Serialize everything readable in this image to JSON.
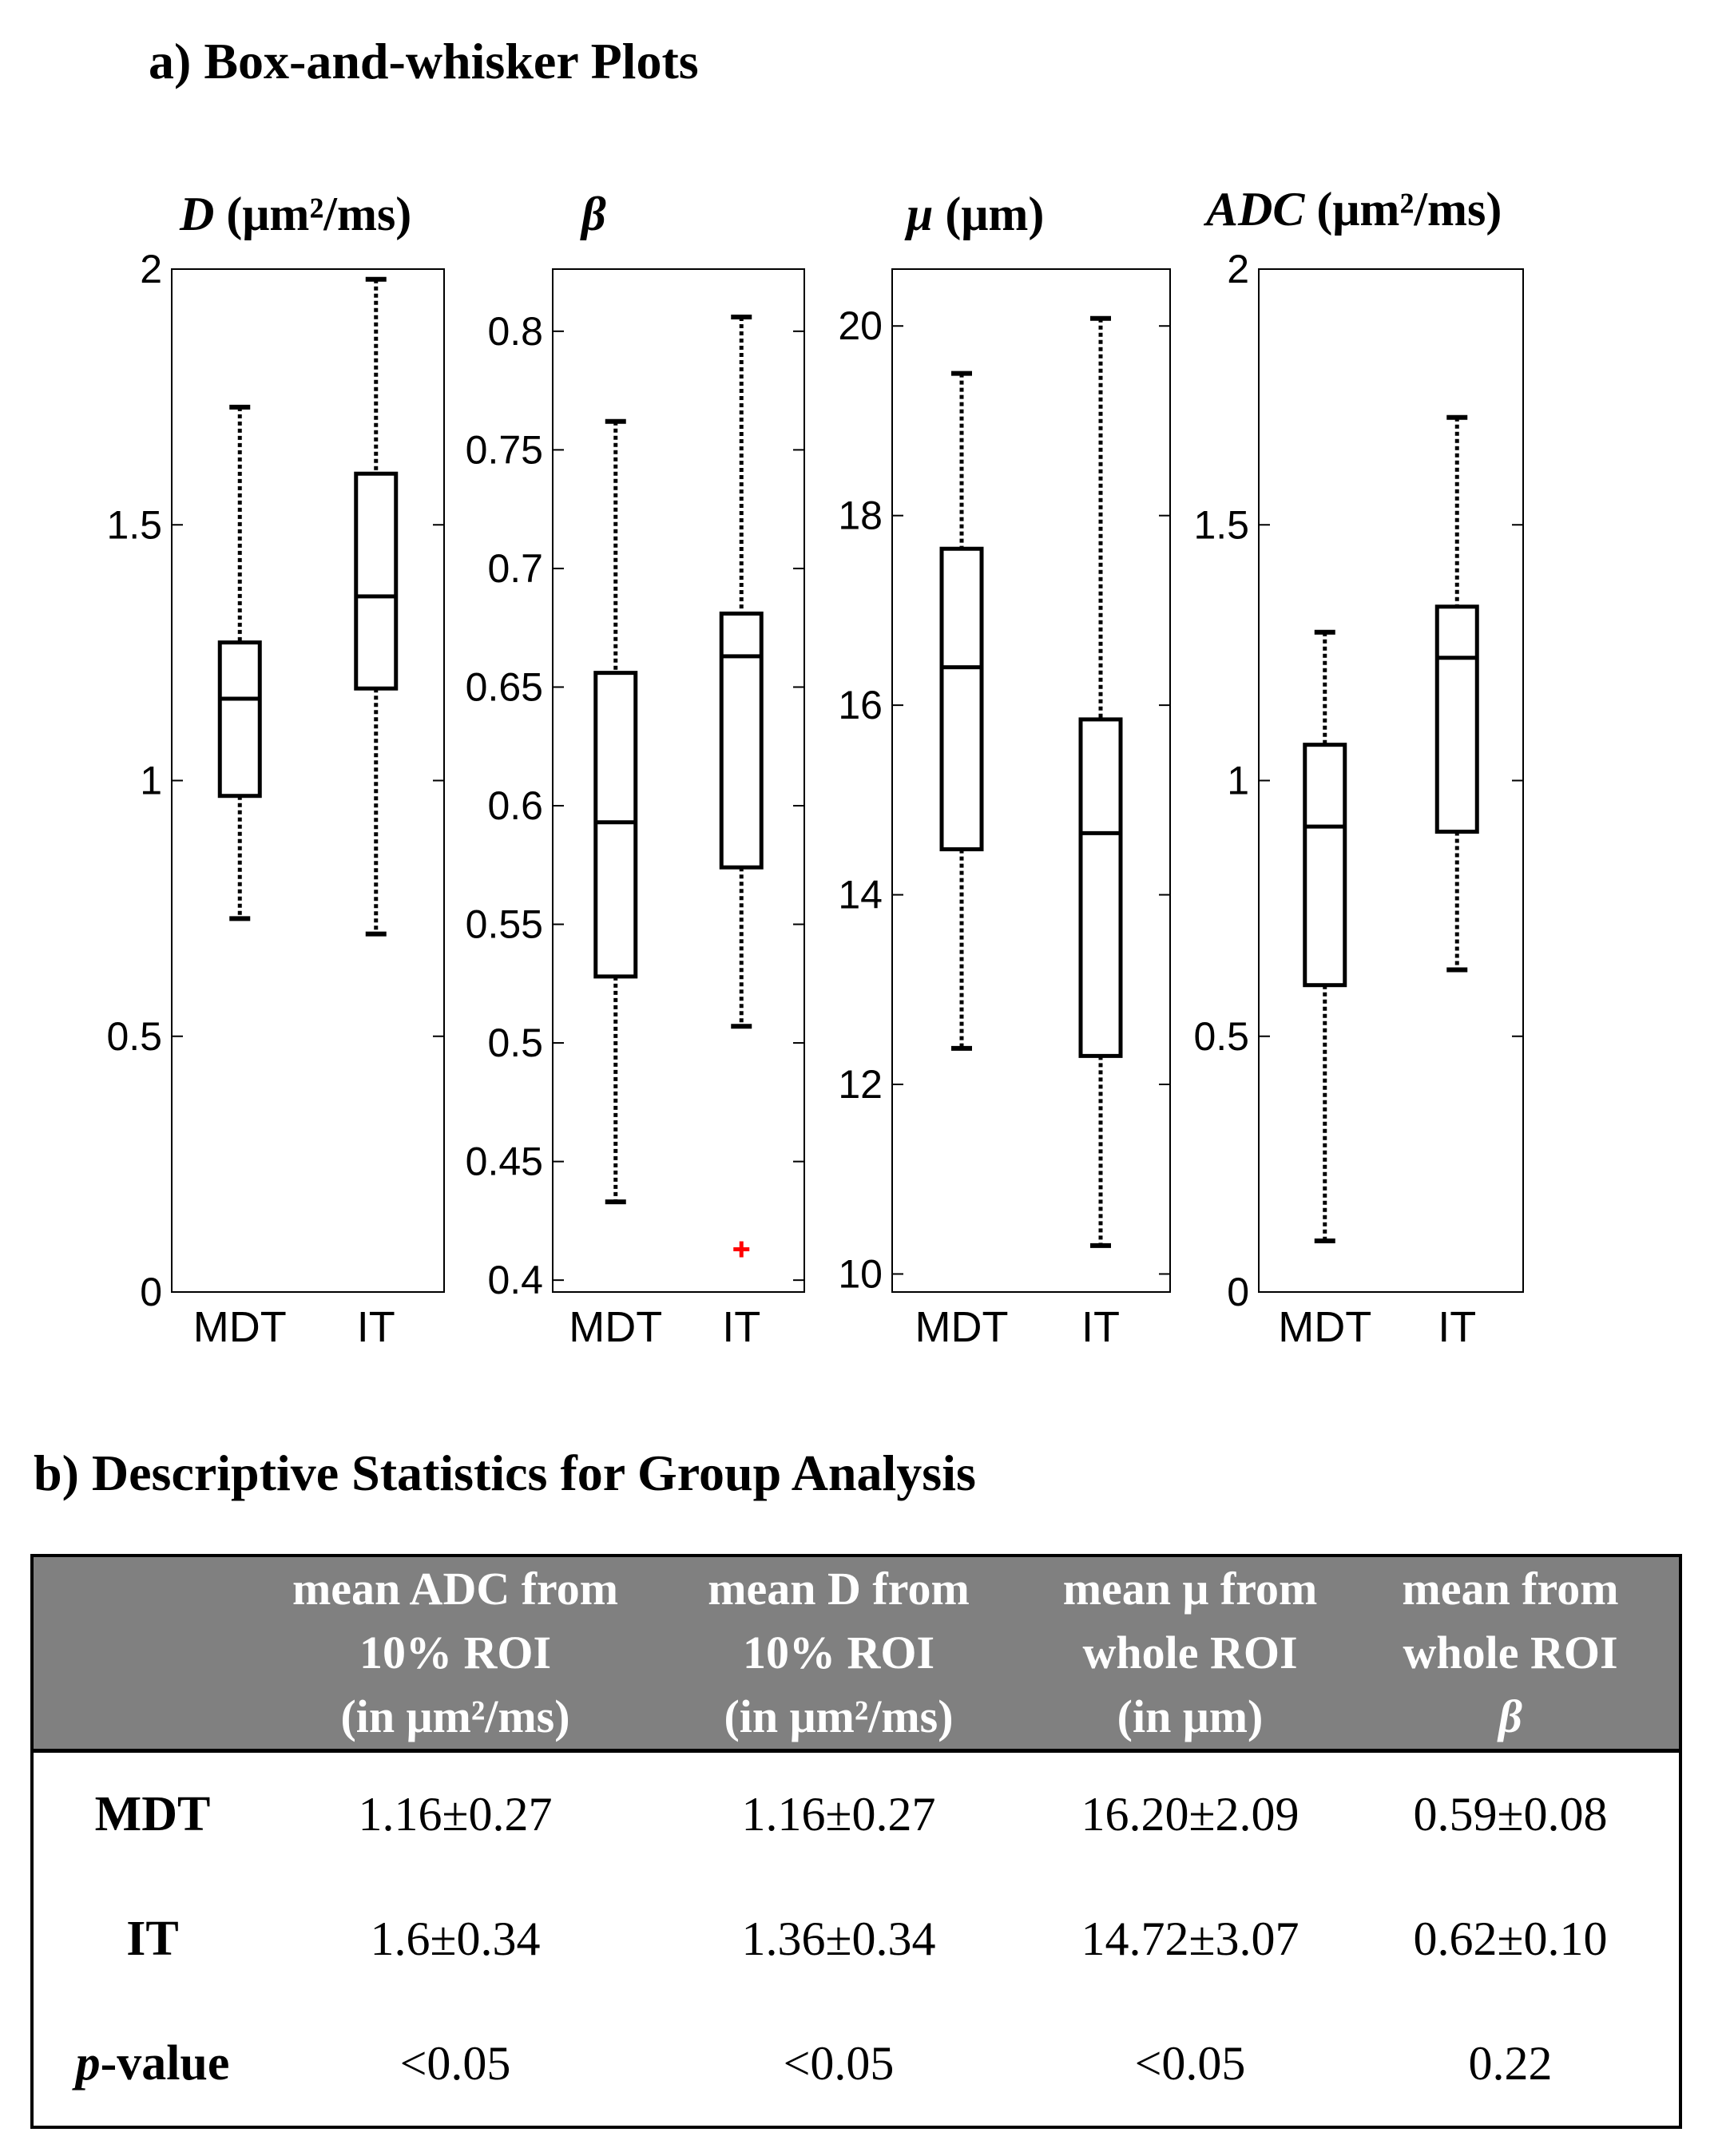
{
  "section_a_title": "a) Box-and-whisker Plots",
  "section_b_title": "b) Descriptive Statistics for Group Analysis",
  "colors": {
    "outlier": "#ff0000",
    "table_header_bg": "#808080",
    "table_header_text": "#ffffff"
  },
  "chart_data": [
    {
      "type": "box",
      "title": {
        "symbol": "D",
        "unit": " (μm²/ms)"
      },
      "ylim": [
        0,
        2
      ],
      "yticks": [
        "0",
        "0.5",
        "1",
        "1.5",
        "2"
      ],
      "categories": [
        "MDT",
        "IT"
      ],
      "boxes": [
        {
          "group": "MDT",
          "whisker_low": 0.73,
          "q1": 0.97,
          "median": 1.16,
          "q3": 1.27,
          "whisker_high": 1.73,
          "outliers": []
        },
        {
          "group": "IT",
          "whisker_low": 0.7,
          "q1": 1.18,
          "median": 1.36,
          "q3": 1.6,
          "whisker_high": 1.98,
          "outliers": []
        }
      ]
    },
    {
      "type": "box",
      "title": {
        "symbol": "β",
        "unit": ""
      },
      "ylim": [
        0.4,
        0.825
      ],
      "yticks": [
        "0.4",
        "0.45",
        "0.5",
        "0.55",
        "0.6",
        "0.65",
        "0.7",
        "0.75",
        "0.8"
      ],
      "categories": [
        "MDT",
        "IT"
      ],
      "boxes": [
        {
          "group": "MDT",
          "whisker_low": 0.433,
          "q1": 0.528,
          "median": 0.593,
          "q3": 0.656,
          "whisker_high": 0.762,
          "outliers": []
        },
        {
          "group": "IT",
          "whisker_low": 0.507,
          "q1": 0.574,
          "median": 0.663,
          "q3": 0.681,
          "whisker_high": 0.806,
          "outliers": [
            0.413
          ]
        }
      ]
    },
    {
      "type": "box",
      "title": {
        "symbol": "μ",
        "unit": " (μm)"
      },
      "ylim": [
        9.8,
        20.6
      ],
      "yticks": [
        "10",
        "12",
        "14",
        "16",
        "18",
        "20"
      ],
      "categories": [
        "MDT",
        "IT"
      ],
      "boxes": [
        {
          "group": "MDT",
          "whisker_low": 12.38,
          "q1": 14.48,
          "median": 16.4,
          "q3": 17.65,
          "whisker_high": 19.5,
          "outliers": []
        },
        {
          "group": "IT",
          "whisker_low": 10.3,
          "q1": 12.3,
          "median": 14.65,
          "q3": 15.85,
          "whisker_high": 20.08,
          "outliers": []
        }
      ]
    },
    {
      "type": "box",
      "title": {
        "symbol": "ADC",
        "unit": " (μm²/ms)"
      },
      "ylim": [
        0,
        2
      ],
      "yticks": [
        "0",
        "0.5",
        "1",
        "1.5",
        "2"
      ],
      "categories": [
        "MDT",
        "IT"
      ],
      "boxes": [
        {
          "group": "MDT",
          "whisker_low": 0.1,
          "q1": 0.6,
          "median": 0.91,
          "q3": 1.07,
          "whisker_high": 1.29,
          "outliers": []
        },
        {
          "group": "IT",
          "whisker_low": 0.63,
          "q1": 0.9,
          "median": 1.24,
          "q3": 1.34,
          "whisker_high": 1.71,
          "outliers": []
        }
      ]
    }
  ],
  "table": {
    "headers": [
      {
        "l1": "",
        "l2": "",
        "l3": ""
      },
      {
        "l1": "mean ADC from",
        "l2": "10% ROI",
        "l3": "(in μm²/ms)"
      },
      {
        "l1": "mean D from",
        "l2": "10% ROI",
        "l3": "(in μm²/ms)"
      },
      {
        "l1": "mean μ from",
        "l2": "whole ROI",
        "l3": "(in μm)"
      },
      {
        "l1": "mean  from",
        "l2": "whole ROI",
        "l3": "β"
      }
    ],
    "rows": [
      {
        "label_prefix": "",
        "label": "MDT",
        "cells": [
          "1.16±0.27",
          "1.16±0.27",
          "16.20±2.09",
          "0.59±0.08"
        ]
      },
      {
        "label_prefix": "",
        "label": "IT",
        "cells": [
          "1.6±0.34",
          "1.36±0.34",
          "14.72±3.07",
          "0.62±0.10"
        ]
      },
      {
        "label_prefix": "p",
        "label": "-value",
        "cells": [
          "<0.05",
          "<0.05",
          "<0.05",
          "0.22"
        ]
      }
    ]
  }
}
